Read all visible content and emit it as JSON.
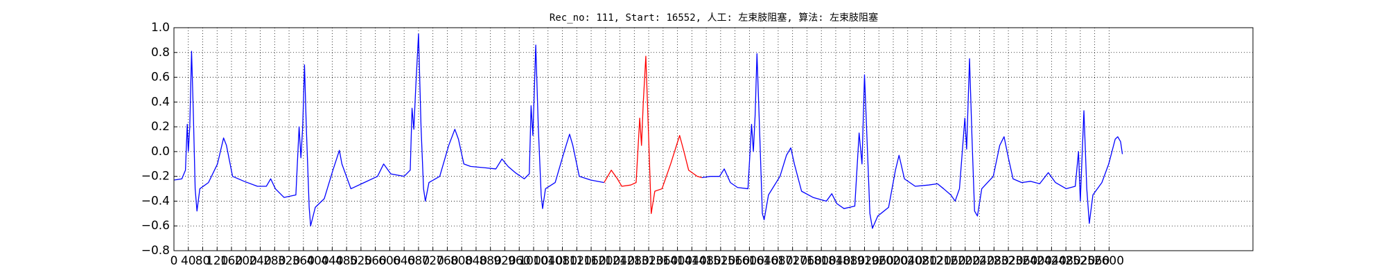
{
  "chart_data": {
    "type": "line",
    "title": "Rec_no: 111, Start: 16552, 人工: 左束肢阻塞, 算法: 左束肢阻塞",
    "xlim": [
      0,
      3000
    ],
    "ylim": [
      -0.8,
      1.0
    ],
    "xticks": [
      0,
      40,
      80,
      120,
      160,
      200,
      240,
      280,
      320,
      360,
      400,
      440,
      480,
      520,
      560,
      600,
      640,
      680,
      720,
      760,
      800,
      840,
      880,
      920,
      960,
      1000,
      1040,
      1080,
      1120,
      1160,
      1200,
      1240,
      1280,
      1320,
      1360,
      1400,
      1440,
      1480,
      1520,
      1560,
      1600,
      1640,
      1680,
      1720,
      1760,
      1800,
      1840,
      1880,
      1920,
      1960,
      2000,
      2040,
      2080,
      2120,
      2160,
      2200,
      2240,
      2280,
      2320,
      2360,
      2400,
      2440,
      2480,
      2520,
      2560,
      2600
    ],
    "yticks": [
      {
        "value": -0.8,
        "label": "−0.8"
      },
      {
        "value": -0.6,
        "label": "−0.6"
      },
      {
        "value": -0.4,
        "label": "−0.4"
      },
      {
        "value": -0.2,
        "label": "−0.2"
      },
      {
        "value": 0,
        "label": "0.0"
      },
      0.2,
      0.4,
      0.6,
      0.8,
      {
        "value": 1,
        "label": "1.0"
      }
    ],
    "grid": true,
    "series": [
      {
        "color": "#0000ff",
        "x": [
          0,
          22,
          32,
          37,
          40,
          44,
          49,
          54,
          59,
          64,
          72,
          96,
          121,
          138,
          146,
          163,
          195,
          232,
          257,
          269,
          282,
          306,
          339,
          348,
          353,
          358,
          363,
          368,
          376,
          380,
          393,
          418,
          442,
          460,
          467,
          492,
          529,
          566,
          583,
          603,
          640,
          657,
          662,
          667,
          672,
          680,
          687,
          694,
          699,
          709,
          739,
          764,
          781,
          791,
          806,
          825,
          862,
          895,
          912,
          929,
          949,
          974,
          988,
          993,
          998,
          1006,
          1013,
          1021,
          1025,
          1033,
          1060,
          1085,
          1100,
          1109,
          1127,
          1159,
          1196
        ],
        "values": [
          -0.23,
          -0.22,
          -0.15,
          0.22,
          0.0,
          0.2,
          0.81,
          0.3,
          -0.3,
          -0.48,
          -0.3,
          -0.25,
          -0.1,
          0.11,
          0.05,
          -0.2,
          -0.24,
          -0.28,
          -0.28,
          -0.22,
          -0.3,
          -0.37,
          -0.35,
          0.2,
          -0.05,
          0.2,
          0.7,
          0.2,
          -0.45,
          -0.6,
          -0.45,
          -0.38,
          -0.15,
          0.01,
          -0.1,
          -0.3,
          -0.25,
          -0.2,
          -0.1,
          -0.18,
          -0.2,
          -0.15,
          0.35,
          0.18,
          0.5,
          0.95,
          0.2,
          -0.3,
          -0.4,
          -0.25,
          -0.2,
          0.05,
          0.18,
          0.1,
          -0.1,
          -0.12,
          -0.13,
          -0.14,
          -0.06,
          -0.12,
          -0.17,
          -0.22,
          -0.18,
          0.37,
          0.13,
          0.86,
          0.2,
          -0.35,
          -0.46,
          -0.3,
          -0.25,
          0.0,
          0.14,
          0.05,
          -0.2,
          -0.23,
          -0.25
        ]
      },
      {
        "color": "#ff0000",
        "x": [
          1196,
          1216,
          1233,
          1245,
          1270,
          1285,
          1295,
          1300,
          1305,
          1312,
          1320,
          1327,
          1337,
          1357,
          1381,
          1406,
          1418,
          1431,
          1455,
          1468
        ],
        "values": [
          -0.25,
          -0.15,
          -0.22,
          -0.28,
          -0.27,
          -0.25,
          0.27,
          0.05,
          0.4,
          0.77,
          0.1,
          -0.5,
          -0.32,
          -0.3,
          -0.1,
          0.13,
          0.0,
          -0.15,
          -0.2,
          -0.21
        ]
      },
      {
        "color": "#0000ff",
        "x": [
          1468,
          1492,
          1517,
          1530,
          1547,
          1567,
          1596,
          1606,
          1611,
          1616,
          1621,
          1628,
          1636,
          1641,
          1653,
          1685,
          1703,
          1715,
          1725,
          1745,
          1777,
          1814,
          1829,
          1843,
          1863,
          1893,
          1905,
          1913,
          1920,
          1927,
          1935,
          1942,
          1957,
          1987,
          2006,
          2016,
          2031,
          2061,
          2098,
          2123,
          2140,
          2160,
          2172,
          2184,
          2199,
          2204,
          2212,
          2219,
          2226,
          2234,
          2246,
          2278,
          2296,
          2308,
          2320,
          2333,
          2357,
          2382,
          2407,
          2431,
          2451,
          2481,
          2506,
          2515,
          2520,
          2530,
          2538,
          2545,
          2555,
          2580,
          2599,
          2617,
          2624,
          2632,
          2637
        ],
        "values": [
          -0.21,
          -0.2,
          -0.2,
          -0.14,
          -0.25,
          -0.29,
          -0.3,
          0.22,
          0.0,
          0.3,
          0.79,
          0.2,
          -0.5,
          -0.55,
          -0.35,
          -0.2,
          -0.03,
          0.03,
          -0.1,
          -0.32,
          -0.37,
          -0.4,
          -0.34,
          -0.42,
          -0.46,
          -0.44,
          0.15,
          -0.1,
          0.62,
          0.1,
          -0.5,
          -0.62,
          -0.52,
          -0.45,
          -0.15,
          -0.03,
          -0.22,
          -0.28,
          -0.27,
          -0.26,
          -0.3,
          -0.35,
          -0.4,
          -0.3,
          0.27,
          0.02,
          0.75,
          0.1,
          -0.48,
          -0.52,
          -0.3,
          -0.2,
          0.05,
          0.12,
          -0.05,
          -0.22,
          -0.25,
          -0.24,
          -0.26,
          -0.17,
          -0.25,
          -0.3,
          -0.28,
          0.0,
          -0.4,
          0.33,
          -0.3,
          -0.58,
          -0.35,
          -0.25,
          -0.1,
          0.1,
          0.12,
          0.08,
          -0.02
        ]
      }
    ]
  }
}
